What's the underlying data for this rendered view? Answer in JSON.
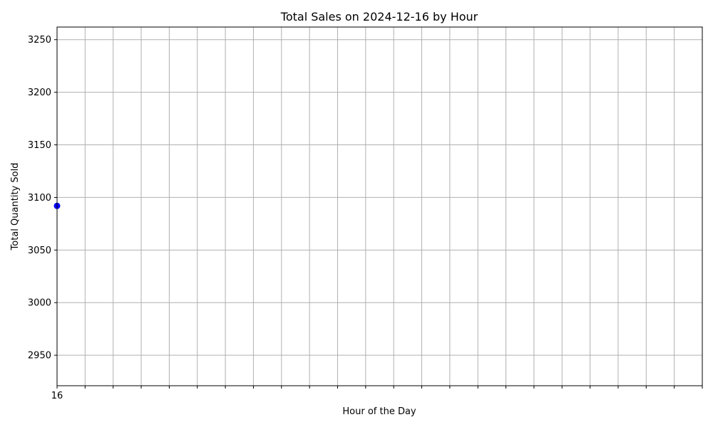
{
  "chart_data": {
    "type": "line",
    "title": "Total Sales on 2024-12-16 by Hour",
    "xlabel": "Hour of the Day",
    "ylabel": "Total Quantity Sold",
    "x": [
      16
    ],
    "series": [
      {
        "values": [
          3092
        ],
        "color": "#0000ff",
        "marker": "circle"
      }
    ],
    "xlim": [
      16,
      39
    ],
    "ylim": [
      2921,
      3262
    ],
    "x_ticks": [
      16,
      17,
      18,
      19,
      20,
      21,
      22,
      23,
      24,
      25,
      26,
      27,
      28,
      29,
      30,
      31,
      32,
      33,
      34,
      35,
      36,
      37,
      38,
      39
    ],
    "x_tick_labels": [
      "16",
      "",
      "",
      "",
      "",
      "",
      "",
      "",
      "",
      "",
      "",
      "",
      "",
      "",
      "",
      "",
      "",
      "",
      "",
      "",
      "",
      "",
      "",
      ""
    ],
    "y_ticks": [
      2950,
      3000,
      3050,
      3100,
      3150,
      3200,
      3250
    ],
    "y_tick_labels": [
      "2950",
      "3000",
      "3050",
      "3100",
      "3150",
      "3200",
      "3250"
    ],
    "grid": true,
    "legend": "none"
  }
}
